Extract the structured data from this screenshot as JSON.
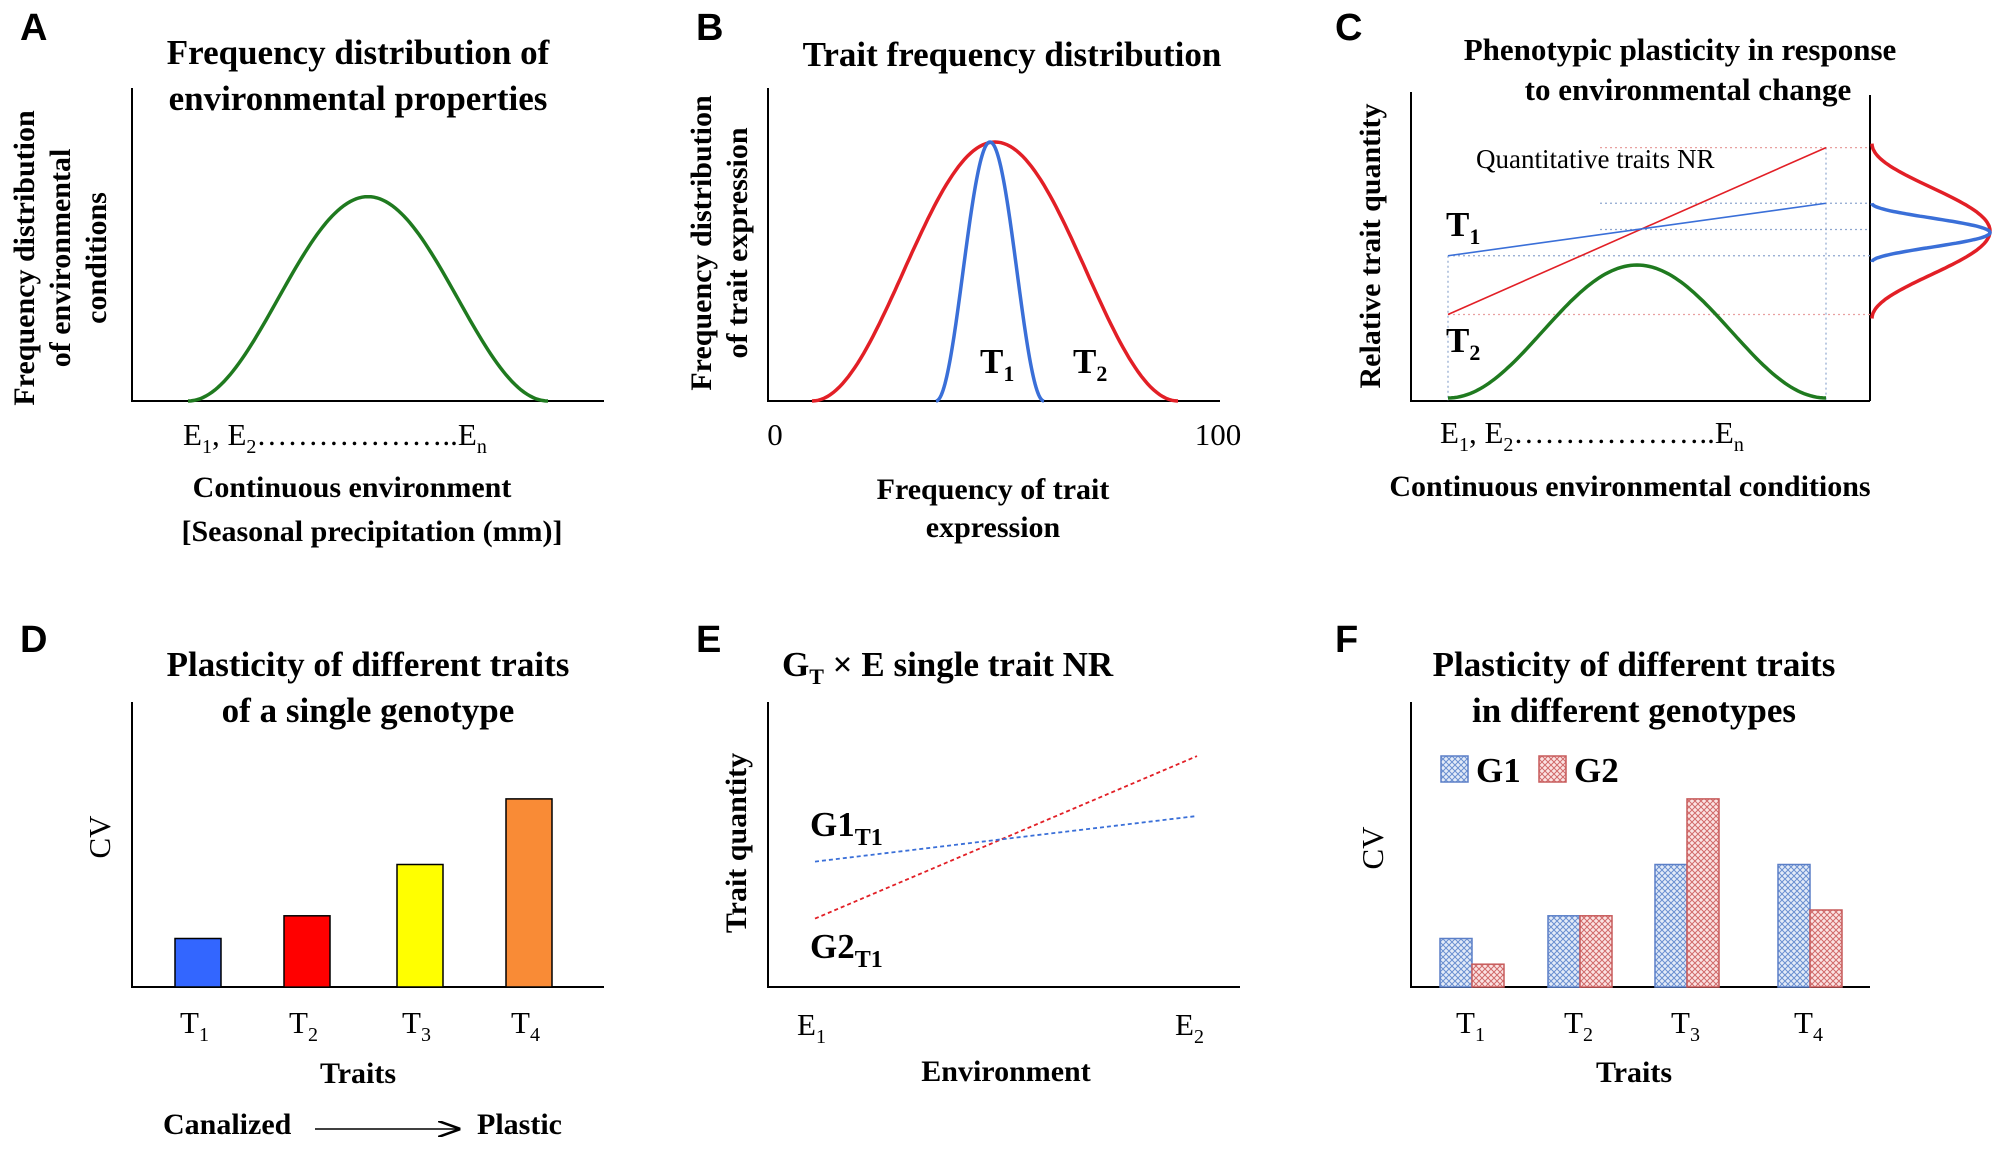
{
  "colors": {
    "green": "#1f7a1f",
    "red": "#e21f26",
    "blue": "#3a6fd8",
    "yellow": "#ffff00",
    "orange": "#f98b36",
    "bar_blue": "#3366ff",
    "bar_red": "#ff0000",
    "g1_fill": "#c9d6ee",
    "g2_fill": "#f2c6c6"
  },
  "panelA": {
    "letter": "A",
    "title_l1": "Frequency distribution of",
    "title_l2": "environmental properties",
    "ylabel_l1": "Frequency distribution",
    "ylabel_l2": "of environmental",
    "ylabel_l3": "conditions",
    "x_tick_left": "E",
    "x_tick_left_sub": "1",
    "x_tick_mid": ", E",
    "x_tick_mid_sub": "2",
    "x_tick_dots": "………………..E",
    "x_tick_right_sub": "n",
    "xlabel_l1": "Continuous  environment",
    "xlabel_l2": "[Seasonal  precipitation  (mm)]"
  },
  "panelB": {
    "letter": "B",
    "title": "Trait frequency distribution",
    "ylabel_l1": "Frequency distribution",
    "ylabel_l2": "of trait expression",
    "x_tick_min": "0",
    "x_tick_max": "100",
    "xlabel_l1": "Frequency of trait",
    "xlabel_l2": "expression",
    "t1": "T",
    "t1_sub": "1",
    "t2": "T",
    "t2_sub": "2"
  },
  "panelC": {
    "letter": "C",
    "title_l1": "Phenotypic plasticity  in response",
    "title_l2": "to environmental  change",
    "ylabel": "Relative trait  quantity",
    "annotation": "Quantitative  traits NR",
    "t1": "T",
    "t1_sub": "1",
    "t2": "T",
    "t2_sub": "2",
    "x_tick_left": "E",
    "x_tick_left_sub": "1",
    "x_tick_mid": ", E",
    "x_tick_mid_sub": "2",
    "x_tick_dots": "………………..E",
    "x_tick_right_sub": "n",
    "xlabel": "Continuous  environmental  conditions"
  },
  "panelD": {
    "letter": "D",
    "title_l1": "Plasticity of different traits",
    "title_l2": "of a single genotype",
    "ylabel": "CV",
    "xlabel": "Traits",
    "canalized": "Canalized",
    "plastic": "Plastic",
    "sub_labels": [
      "1",
      "2",
      "3",
      "4"
    ]
  },
  "panelE": {
    "letter": "E",
    "title_g": "G",
    "title_sub": "T",
    "title_rest": " × E single trait NR",
    "ylabel": "Trait  quantity",
    "xlabel": "Environment",
    "x_tick_left": "E",
    "x_tick_left_sub": "1",
    "x_tick_right": "E",
    "x_tick_right_sub": "2",
    "g1": "G1",
    "g1_sub": "T1",
    "g2": "G2",
    "g2_sub": "T1"
  },
  "panelF": {
    "letter": "F",
    "title_l1": "Plasticity of different traits",
    "title_l2": "in different genotypes",
    "ylabel": "CV",
    "xlabel": "Traits",
    "legend_g1": "G1",
    "legend_g2": "G2"
  },
  "chart_data": [
    {
      "panel": "A",
      "type": "line",
      "title": "Frequency distribution of environmental properties",
      "xlabel": "Continuous environment [Seasonal precipitation (mm)]",
      "ylabel": "Frequency distribution of environmental conditions",
      "series": [
        {
          "name": "environment",
          "shape": "bell",
          "peak_position": 0.5,
          "relative_height": 0.68,
          "color": "green"
        }
      ]
    },
    {
      "panel": "B",
      "type": "line",
      "title": "Trait frequency distribution",
      "xlabel": "Frequency of trait expression",
      "ylabel": "Frequency distribution of trait expression",
      "xlim": [
        0,
        100
      ],
      "series": [
        {
          "name": "T1",
          "center": 52,
          "spread": "narrow",
          "color": "blue"
        },
        {
          "name": "T2",
          "center": 52,
          "spread": "wide",
          "color": "red"
        }
      ]
    },
    {
      "panel": "C",
      "type": "line",
      "title": "Phenotypic plasticity in response to environmental change",
      "xlabel": "Continuous environmental conditions",
      "ylabel": "Relative trait quantity",
      "series": [
        {
          "name": "T1",
          "start": 0.47,
          "end": 0.64,
          "color": "blue"
        },
        {
          "name": "T2",
          "start": 0.28,
          "end": 0.82,
          "color": "red"
        },
        {
          "name": "environment",
          "shape": "bell",
          "relative_height": 0.44,
          "color": "green"
        }
      ]
    },
    {
      "panel": "D",
      "type": "bar",
      "title": "Plasticity of different traits of a single genotype",
      "xlabel": "Traits",
      "ylabel": "CV",
      "categories": [
        "T1",
        "T2",
        "T3",
        "T4"
      ],
      "values": [
        0.17,
        0.25,
        0.43,
        0.66
      ],
      "ylim": [
        0,
        1
      ]
    },
    {
      "panel": "E",
      "type": "line",
      "title": "GT × E single trait NR",
      "xlabel": "Environment",
      "ylabel": "Trait quantity",
      "categories": [
        "E1",
        "E2"
      ],
      "series": [
        {
          "name": "G1T1",
          "values": [
            0.44,
            0.6
          ],
          "color": "blue"
        },
        {
          "name": "G2T1",
          "values": [
            0.24,
            0.81
          ],
          "color": "red"
        }
      ],
      "ylim": [
        0,
        1
      ]
    },
    {
      "panel": "F",
      "type": "bar",
      "title": "Plasticity of different traits in different genotypes",
      "xlabel": "Traits",
      "ylabel": "CV",
      "categories": [
        "T1",
        "T2",
        "T3",
        "T4"
      ],
      "series": [
        {
          "name": "G1",
          "values": [
            0.17,
            0.25,
            0.43,
            0.43
          ]
        },
        {
          "name": "G2",
          "values": [
            0.08,
            0.25,
            0.66,
            0.27
          ]
        }
      ],
      "ylim": [
        0,
        1
      ]
    }
  ]
}
